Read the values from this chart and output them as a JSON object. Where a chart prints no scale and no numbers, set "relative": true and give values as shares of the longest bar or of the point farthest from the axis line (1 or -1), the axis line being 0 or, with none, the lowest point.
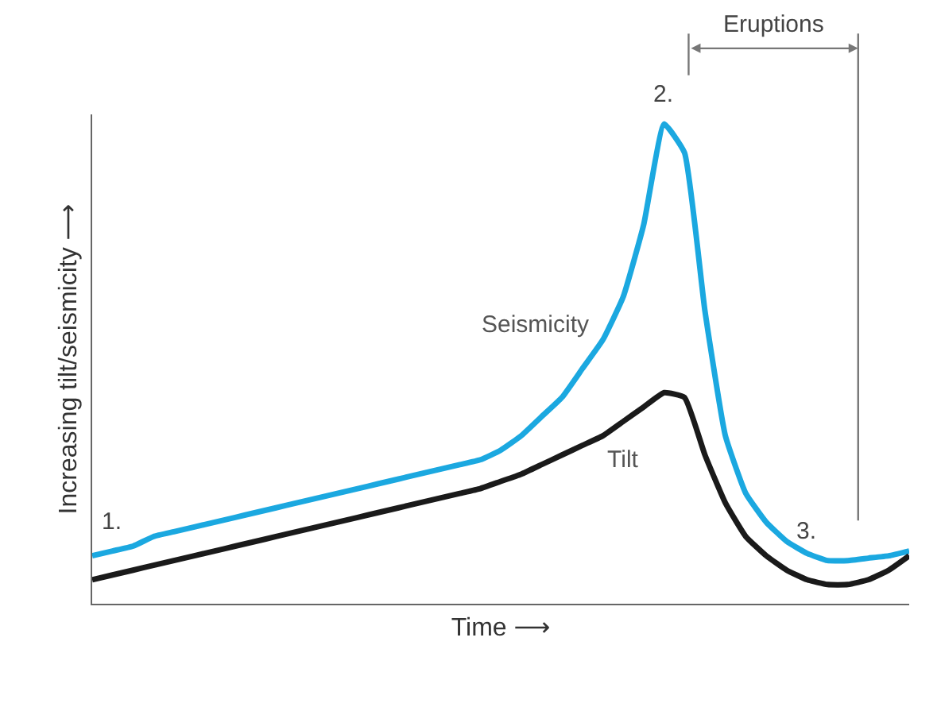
{
  "chart_data": {
    "type": "line",
    "relative": true,
    "xlabel": "Time ⟶",
    "ylabel": "Increasing tilt/seismicity ⟶",
    "categories": [
      null,
      null,
      null,
      null,
      null,
      null,
      null,
      null,
      null,
      null,
      null,
      null,
      null,
      null,
      null,
      null,
      null,
      null,
      null,
      null,
      null,
      null,
      null,
      null,
      null,
      null,
      null,
      null,
      null,
      null,
      null,
      null,
      null,
      null,
      null,
      null,
      null,
      null,
      null,
      null,
      null
    ],
    "series": [
      {
        "name": "Seismicity",
        "color": "#1ba8e0",
        "values": [
          0.1,
          0.11,
          0.12,
          0.14,
          0.15,
          0.16,
          0.17,
          0.18,
          0.19,
          0.2,
          0.21,
          0.22,
          0.23,
          0.24,
          0.25,
          0.26,
          0.27,
          0.28,
          0.29,
          0.3,
          0.32,
          0.35,
          0.39,
          0.43,
          0.49,
          0.55,
          0.64,
          0.79,
          1,
          0.94,
          0.61,
          0.35,
          0.23,
          0.17,
          0.13,
          0.105,
          0.09,
          0.09,
          0.095,
          0.1,
          0.11
        ]
      },
      {
        "name": "Tilt",
        "color": "#1a1a1a",
        "values": [
          0.05,
          0.06,
          0.07,
          0.08,
          0.09,
          0.1,
          0.11,
          0.12,
          0.13,
          0.14,
          0.15,
          0.16,
          0.17,
          0.18,
          0.19,
          0.2,
          0.21,
          0.22,
          0.23,
          0.24,
          0.255,
          0.27,
          0.29,
          0.31,
          0.33,
          0.35,
          0.38,
          0.41,
          0.44,
          0.43,
          0.31,
          0.21,
          0.14,
          0.1,
          0.07,
          0.05,
          0.04,
          0.04,
          0.05,
          0.07,
          0.1
        ]
      }
    ],
    "annotations": [
      "1.",
      "2.",
      "3.",
      "Eruptions"
    ],
    "legend": false,
    "marker": "none",
    "line_style": "solid"
  }
}
